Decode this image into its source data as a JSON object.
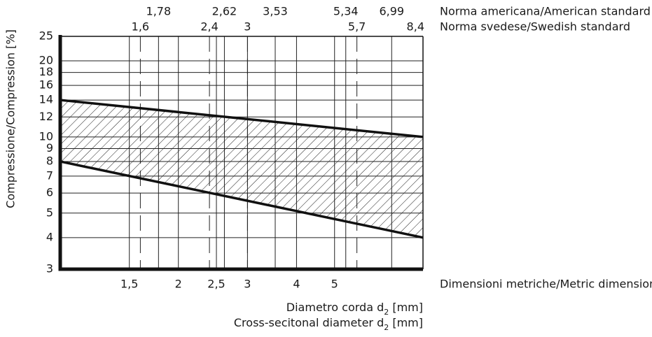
{
  "chart_data": {
    "type": "line",
    "xlog": true,
    "ylog": true,
    "xlim": [
      1,
      8.4
    ],
    "ylim": [
      3,
      25
    ],
    "xticks": [
      {
        "value": 1.5,
        "label": "1,5"
      },
      2,
      {
        "value": 2.5,
        "label": "2,5"
      },
      3,
      4,
      5
    ],
    "xaxis_label": "Dimensioni metriche/Metric dimensions",
    "yticks": [
      3,
      4,
      5,
      6,
      7,
      8,
      9,
      10,
      12,
      14,
      16,
      18,
      20,
      25
    ],
    "ylabel": "Compressione/Compression [%]",
    "xlabel": [
      [
        "Diametro corda d",
        "2",
        " [mm]"
      ],
      [
        "Cross-secitonal diameter d",
        "2",
        " [mm]"
      ]
    ],
    "grid": true,
    "hatch_between_series": true,
    "top_axes": [
      {
        "label": "Norma americana/American standard",
        "dashed": false,
        "ticks": [
          {
            "value": 1.78,
            "label": "1,78"
          },
          {
            "value": 2.62,
            "label": "2,62"
          },
          {
            "value": 3.53,
            "label": "3,53"
          },
          {
            "value": 5.34,
            "label": "5,34"
          },
          {
            "value": 6.99,
            "label": "6,99"
          }
        ]
      },
      {
        "label": "Norma svedese/Swedish standard",
        "dashed": true,
        "ticks": [
          {
            "value": 1.6,
            "label": "1,6"
          },
          {
            "value": 2.4,
            "label": "2,4"
          },
          3,
          {
            "value": 5.7,
            "label": "5,7"
          },
          {
            "value": 8.4,
            "label": "8,4"
          }
        ]
      }
    ],
    "series": [
      {
        "color": "#111111",
        "x": [
          1,
          8.4
        ],
        "values": [
          14,
          10
        ]
      },
      {
        "color": "#111111",
        "x": [
          1,
          8.4
        ],
        "values": [
          8,
          4
        ]
      }
    ]
  }
}
